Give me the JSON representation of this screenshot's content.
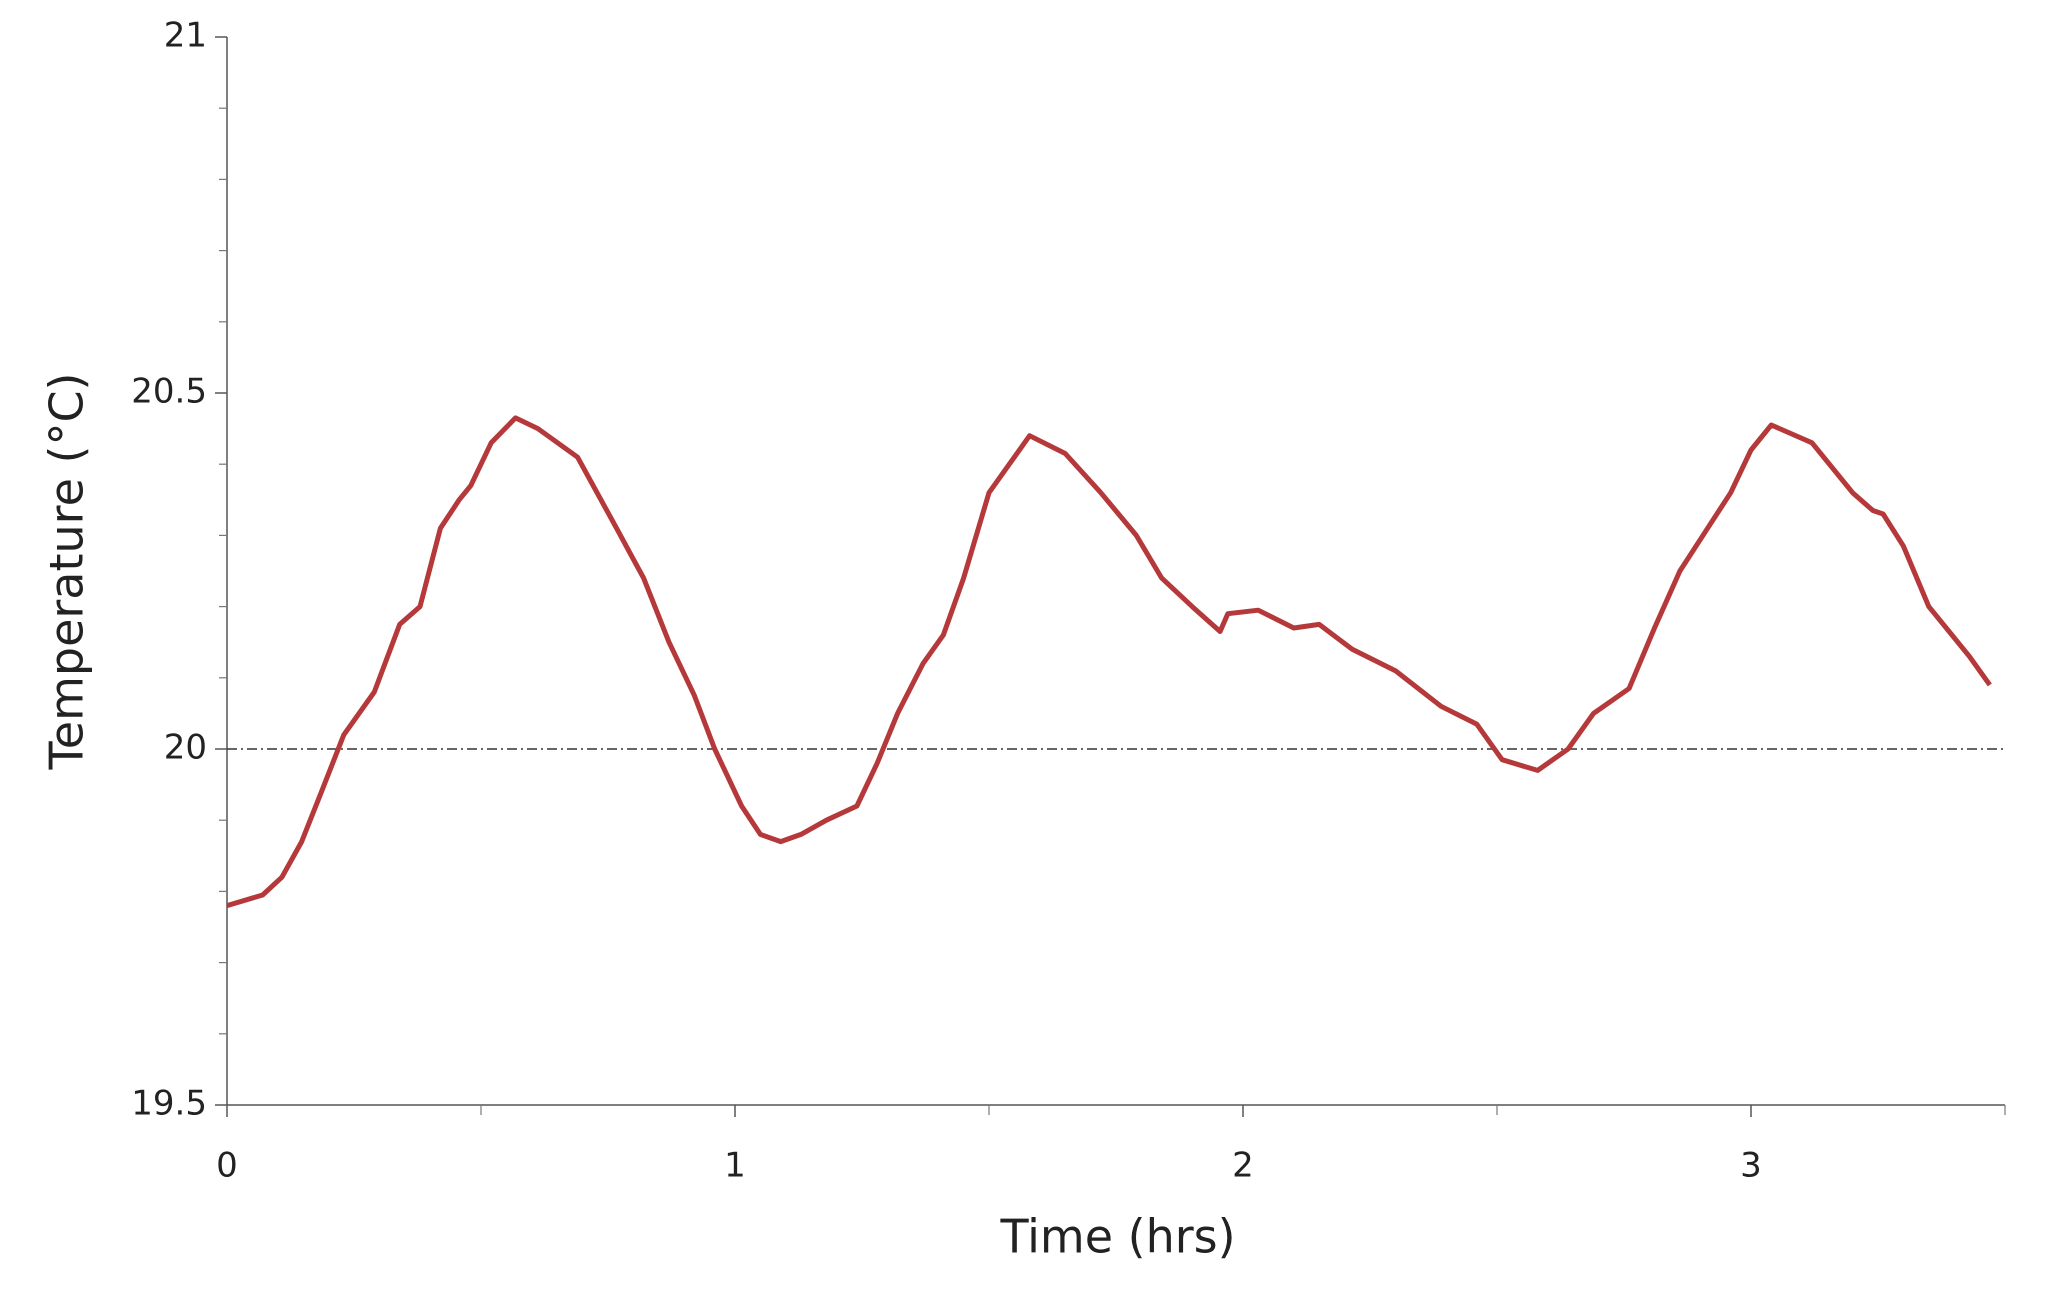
{
  "chart_data": {
    "type": "line",
    "x_label": "Time (hrs)",
    "y_label": "Temperature (°C)",
    "xlim": [
      0,
      3.5
    ],
    "ylim": [
      19.5,
      21
    ],
    "xticks": [
      0,
      1,
      2,
      3
    ],
    "yticks": [
      19.5,
      20,
      20.5,
      21
    ],
    "xminorticks": [
      0.5,
      1.5,
      2.5,
      3.5
    ],
    "yminorticks": [
      19.6,
      19.7,
      19.8,
      19.9,
      20.1,
      20.2,
      20.3,
      20.4,
      20.6,
      20.7,
      20.8,
      20.9
    ],
    "reference_line": 20,
    "x": [
      0,
      0.07,
      0.108,
      0.147,
      0.186,
      0.23,
      0.29,
      0.34,
      0.38,
      0.42,
      0.457,
      0.48,
      0.52,
      0.568,
      0.612,
      0.69,
      0.767,
      0.82,
      0.87,
      0.92,
      0.96,
      1.013,
      1.05,
      1.09,
      1.13,
      1.18,
      1.24,
      1.28,
      1.32,
      1.37,
      1.41,
      1.45,
      1.5,
      1.54,
      1.58,
      1.65,
      1.72,
      1.79,
      1.84,
      1.9,
      1.955,
      1.97,
      2.03,
      2.1,
      2.15,
      2.215,
      2.3,
      2.39,
      2.46,
      2.51,
      2.58,
      2.64,
      2.69,
      2.76,
      2.81,
      2.86,
      2.91,
      2.96,
      3.0,
      3.04,
      3.12,
      3.2,
      3.24,
      3.26,
      3.3,
      3.35,
      3.43,
      3.47
    ],
    "series": [
      {
        "color": "#b5383a",
        "values": [
          19.78,
          19.795,
          19.82,
          19.87,
          19.94,
          20.02,
          20.08,
          20.175,
          20.2,
          20.31,
          20.35,
          20.37,
          20.43,
          20.465,
          20.45,
          20.41,
          20.31,
          20.24,
          20.15,
          20.075,
          20.0,
          19.92,
          19.88,
          19.87,
          19.88,
          19.9,
          19.92,
          19.98,
          20.05,
          20.12,
          20.16,
          20.24,
          20.36,
          20.4,
          20.44,
          20.415,
          20.36,
          20.3,
          20.24,
          20.2,
          20.165,
          20.19,
          20.195,
          20.17,
          20.175,
          20.14,
          20.11,
          20.06,
          20.035,
          19.985,
          19.97,
          20.0,
          20.05,
          20.085,
          20.17,
          20.25,
          20.305,
          20.36,
          20.42,
          20.455,
          20.43,
          20.36,
          20.335,
          20.33,
          20.285,
          20.2,
          20.13,
          20.09
        ]
      }
    ]
  }
}
